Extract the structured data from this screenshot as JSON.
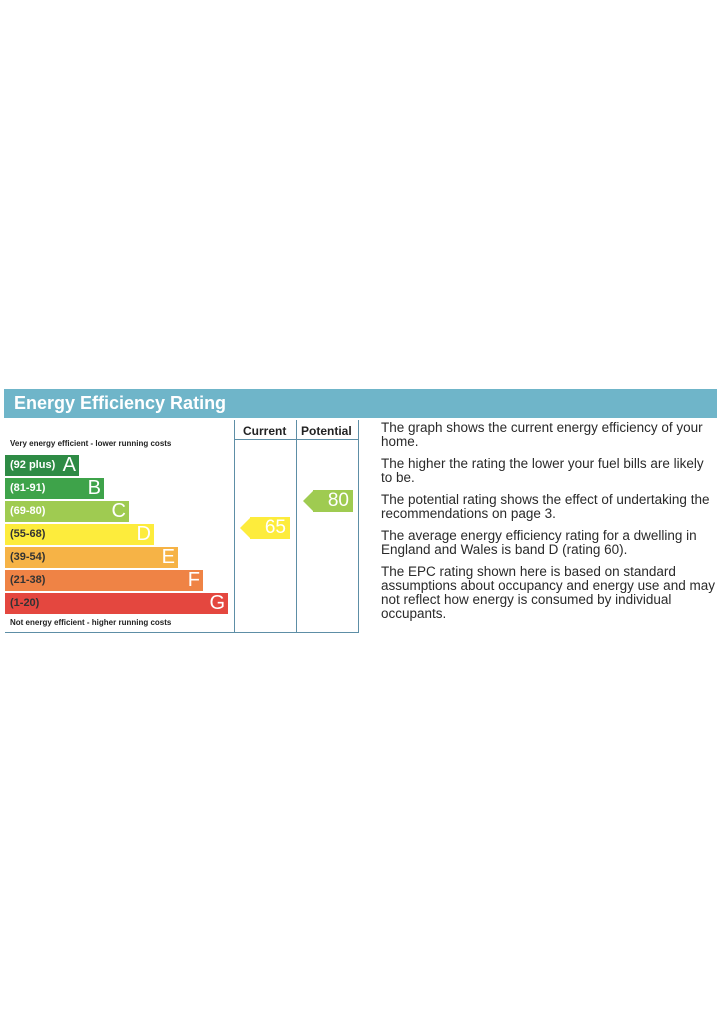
{
  "title": "Energy Efficiency Rating",
  "top_label": "Very energy efficient - lower running costs",
  "bottom_label": "Not energy efficient - higher running costs",
  "columns": {
    "current": "Current",
    "potential": "Potential"
  },
  "bands": [
    {
      "range": "(92 plus)",
      "letter": "A",
      "color": "#2e8b45"
    },
    {
      "range": "(81-91)",
      "letter": "B",
      "color": "#3ea34a"
    },
    {
      "range": "(69-80)",
      "letter": "C",
      "color": "#9fcb51"
    },
    {
      "range": "(55-68)",
      "letter": "D",
      "color": "#fdec3c"
    },
    {
      "range": "(39-54)",
      "letter": "E",
      "color": "#f6b346"
    },
    {
      "range": "(21-38)",
      "letter": "F",
      "color": "#ef8345"
    },
    {
      "range": "(1-20)",
      "letter": "G",
      "color": "#e4473f"
    }
  ],
  "ratings": {
    "current": {
      "value": "65",
      "band": "D",
      "color": "#fdec3c"
    },
    "potential": {
      "value": "80",
      "band": "C",
      "color": "#9fcb51"
    }
  },
  "description": [
    "The graph shows the current energy efficiency of your home.",
    "The higher the rating the lower your fuel bills are likely to be.",
    "The potential rating shows the effect of undertaking the recommendations on page 3.",
    "The average energy efficiency rating for a dwelling in England and Wales is band D (rating 60).",
    "The EPC rating shown here is based on standard assumptions about occupancy and energy use and may not reflect how energy is consumed by individual occupants."
  ]
}
